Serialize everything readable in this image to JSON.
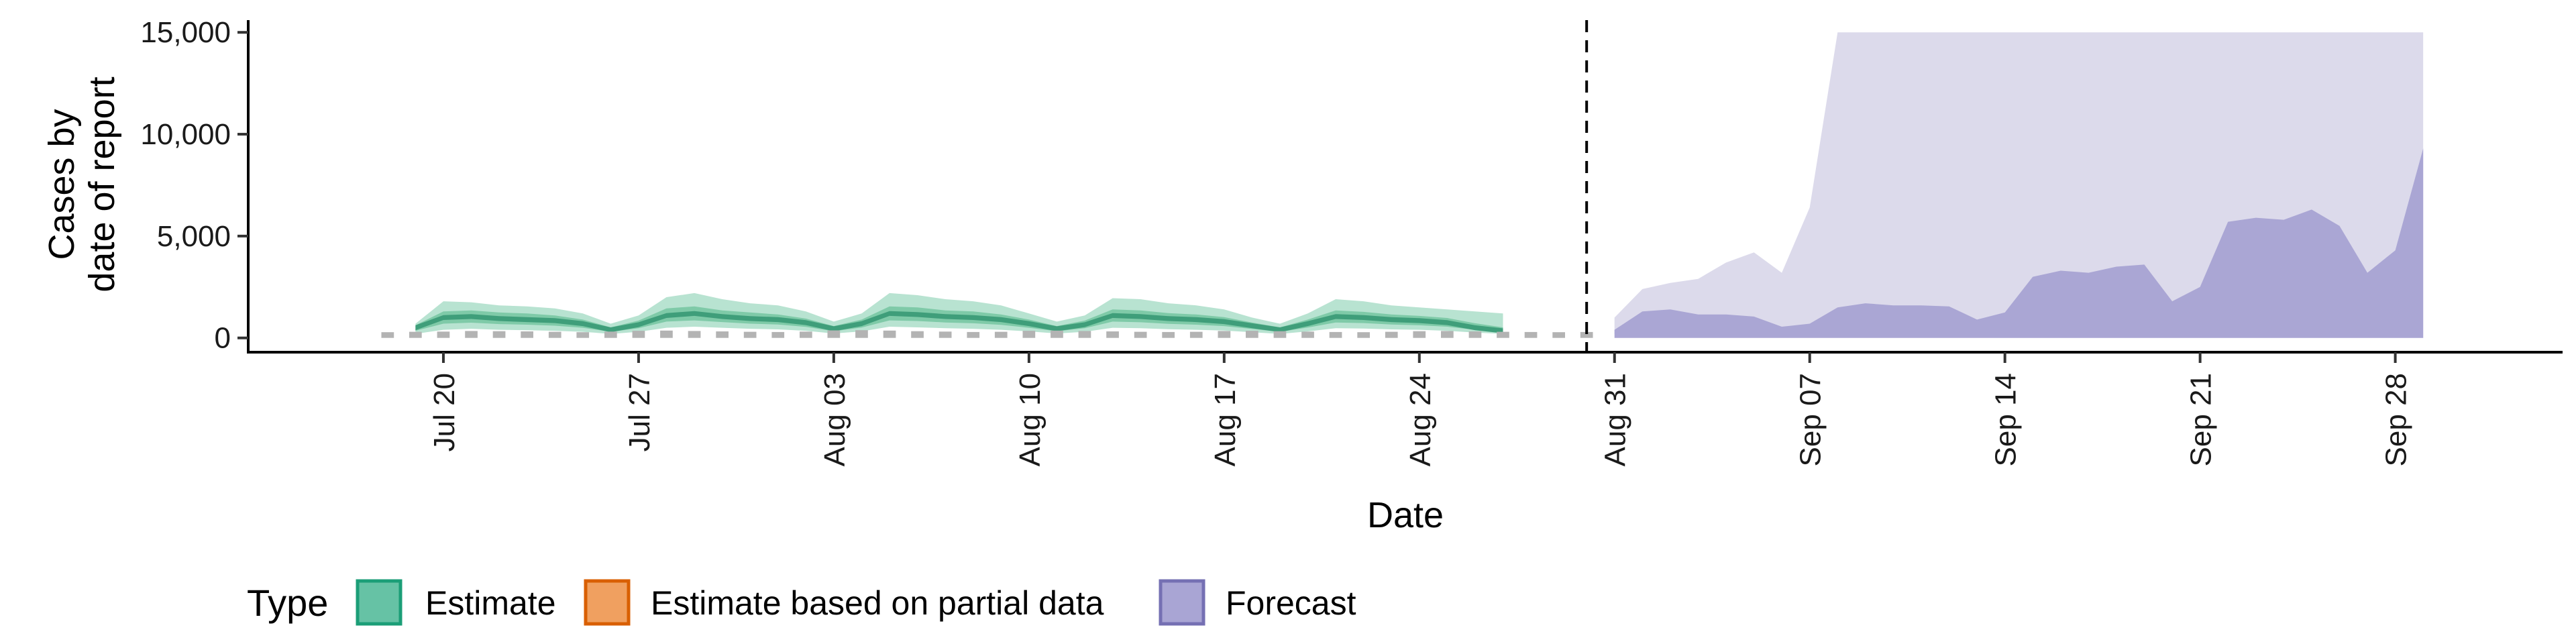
{
  "chart_data": {
    "type": "area",
    "xlabel": "Date",
    "ylabel_lines": [
      "Cases by",
      "date of report"
    ],
    "ylim": [
      -700,
      15600
    ],
    "yticks": [
      0,
      5000,
      10000,
      15000
    ],
    "ytick_labels": [
      "0",
      "5,000",
      "10,000",
      "15,000"
    ],
    "xlim": [
      "2020-07-13",
      "2020-10-04"
    ],
    "xticks": [
      "2020-07-20",
      "2020-07-27",
      "2020-08-03",
      "2020-08-10",
      "2020-08-17",
      "2020-08-24",
      "2020-08-31",
      "2020-09-07",
      "2020-09-14",
      "2020-09-21",
      "2020-09-28"
    ],
    "xtick_labels": [
      "Jul 20",
      "Jul 27",
      "Aug 03",
      "Aug 10",
      "Aug 17",
      "Aug 24",
      "Aug 31",
      "Sep 07",
      "Sep 14",
      "Sep 21",
      "Sep 28"
    ],
    "vline_date": "2020-08-30",
    "legend": {
      "title": "Type",
      "position": "bottom",
      "entries": [
        {
          "name": "Estimate",
          "fill": "#66c2a5",
          "stroke": "#1b9e77"
        },
        {
          "name": "Estimate based on partial data",
          "fill": "#f0a060",
          "stroke": "#d95f02"
        },
        {
          "name": "Forecast",
          "fill": "#a9a5d4",
          "stroke": "#7570b3"
        }
      ]
    },
    "colors": {
      "estimate_outer": "#b8e3d1",
      "estimate_mid": "#7fcaa8",
      "estimate_inner": "#3f9e7a",
      "forecast_outer": "#dcdaeb",
      "forecast_inner": "#aaa6d4",
      "reported_bars": "#b3b3b3",
      "vline": "#000000"
    },
    "reported_cases": {
      "start_date": "2020-07-18",
      "values": [
        280,
        300,
        310,
        340,
        330,
        320,
        300,
        280,
        310,
        350,
        360,
        340,
        320,
        300,
        290,
        310,
        370,
        380,
        360,
        330,
        310,
        290,
        300,
        350,
        360,
        340,
        320,
        300,
        290,
        300,
        340,
        350,
        330,
        310,
        290,
        280,
        300,
        330,
        340,
        320,
        300,
        290,
        280,
        290
      ]
    },
    "estimate": {
      "start_date": "2020-07-19",
      "dates_count": 40,
      "median": [
        500,
        1000,
        1050,
        950,
        900,
        850,
        700,
        400,
        650,
        1100,
        1200,
        1050,
        950,
        900,
        750,
        450,
        700,
        1200,
        1150,
        1050,
        1000,
        900,
        700,
        450,
        650,
        1100,
        1050,
        950,
        900,
        800,
        600,
        400,
        700,
        1050,
        1000,
        900,
        850,
        750,
        500,
        350
      ],
      "lower_outer": [
        200,
        400,
        450,
        400,
        380,
        350,
        300,
        200,
        300,
        500,
        550,
        500,
        450,
        420,
        350,
        220,
        320,
        550,
        520,
        480,
        450,
        400,
        320,
        220,
        300,
        500,
        480,
        430,
        400,
        360,
        280,
        200,
        320,
        480,
        460,
        420,
        400,
        350,
        260,
        200
      ],
      "upper_outer": [
        700,
        1800,
        1750,
        1600,
        1550,
        1450,
        1200,
        700,
        1100,
        2000,
        2200,
        1900,
        1700,
        1600,
        1300,
        800,
        1200,
        2200,
        2100,
        1900,
        1800,
        1600,
        1200,
        800,
        1100,
        1950,
        1900,
        1700,
        1600,
        1400,
        1000,
        700,
        1200,
        1900,
        1800,
        1600,
        1500,
        1400,
        1300,
        1200
      ],
      "lower_mid": [
        350,
        700,
        750,
        680,
        650,
        600,
        500,
        300,
        480,
        800,
        860,
        780,
        700,
        660,
        540,
        330,
        510,
        860,
        830,
        760,
        720,
        640,
        500,
        330,
        480,
        800,
        770,
        690,
        650,
        580,
        440,
        300,
        510,
        760,
        730,
        660,
        620,
        550,
        400,
        280
      ],
      "upper_mid": [
        620,
        1300,
        1350,
        1250,
        1200,
        1100,
        900,
        520,
        850,
        1450,
        1550,
        1350,
        1250,
        1150,
        950,
        580,
        900,
        1550,
        1500,
        1350,
        1300,
        1150,
        900,
        580,
        850,
        1400,
        1350,
        1220,
        1150,
        1020,
        760,
        520,
        900,
        1350,
        1280,
        1150,
        1080,
        980,
        720,
        520
      ]
    },
    "forecast": {
      "start_date": "2020-08-31",
      "lower": [
        200,
        400,
        350,
        250,
        150,
        120,
        100,
        60,
        30,
        20,
        10,
        10,
        10,
        10,
        5,
        5,
        5,
        5,
        5,
        5,
        5,
        5,
        5,
        5,
        5,
        5,
        5,
        5,
        5,
        5
      ],
      "median": [
        300,
        550,
        700,
        650,
        600,
        500,
        300,
        400,
        600,
        750,
        700,
        650,
        600,
        550,
        500,
        600,
        800,
        700,
        650,
        700,
        750,
        500,
        600,
        900,
        1000,
        950,
        900,
        800,
        600,
        800
      ],
      "upper_inner": [
        400,
        1300,
        1400,
        1150,
        1150,
        1050,
        550,
        700,
        1500,
        1700,
        1600,
        1600,
        1550,
        900,
        1250,
        3000,
        3300,
        3200,
        3500,
        3600,
        1800,
        2500,
        5700,
        5900,
        5800,
        6300,
        5500,
        3200,
        4300,
        9300
      ],
      "upper_outer": [
        1000,
        2400,
        2700,
        2900,
        3700,
        4200,
        3200,
        6400,
        15000,
        15000,
        15000,
        15000,
        15000,
        15000,
        15000,
        15000,
        15000,
        15000,
        15000,
        15000,
        15000,
        15000,
        15000,
        15000,
        15000,
        15000,
        15000,
        15000,
        15000,
        15000
      ]
    }
  }
}
